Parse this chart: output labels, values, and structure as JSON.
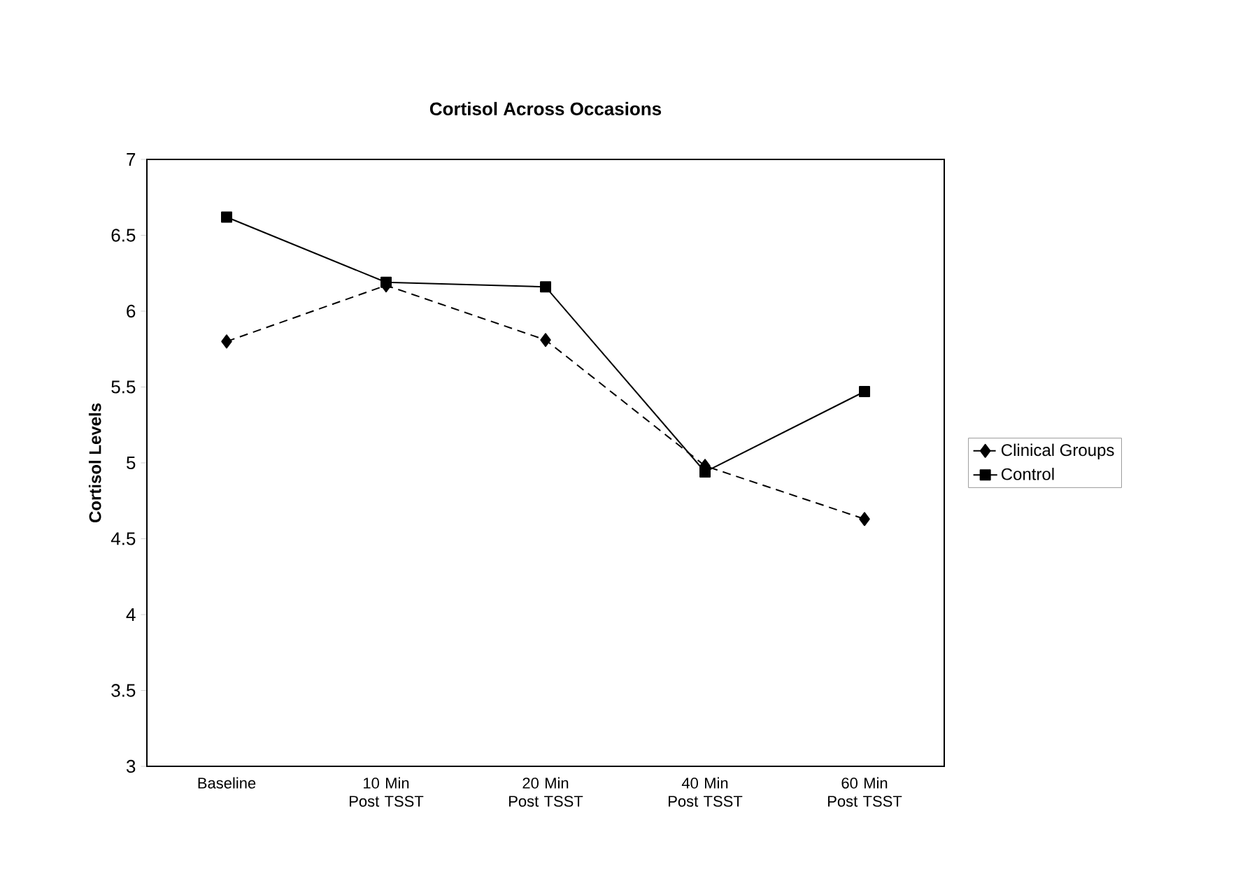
{
  "chart_data": {
    "type": "line",
    "title": "Cortisol Across Occasions",
    "ylabel": "Cortisol Levels",
    "categories": [
      "Baseline",
      "10 Min Post TSST",
      "20 Min Post TSST",
      "40 Min Post TSST",
      "60 Min Post TSST"
    ],
    "series": [
      {
        "name": "Clinical Groups",
        "color": "#000000",
        "values": [
          5.8,
          6.17,
          5.81,
          4.98,
          4.63
        ],
        "marker": "diamond",
        "line_style": "dashed"
      },
      {
        "name": "Control",
        "color": "#000000",
        "values": [
          6.62,
          6.19,
          6.16,
          4.94,
          5.47
        ],
        "marker": "square",
        "line_style": "solid"
      }
    ],
    "ylim": [
      3,
      7
    ],
    "yticks": [
      3,
      3.5,
      4,
      4.5,
      5,
      5.5,
      6,
      6.5,
      7
    ],
    "grid": false,
    "legend": "right"
  }
}
